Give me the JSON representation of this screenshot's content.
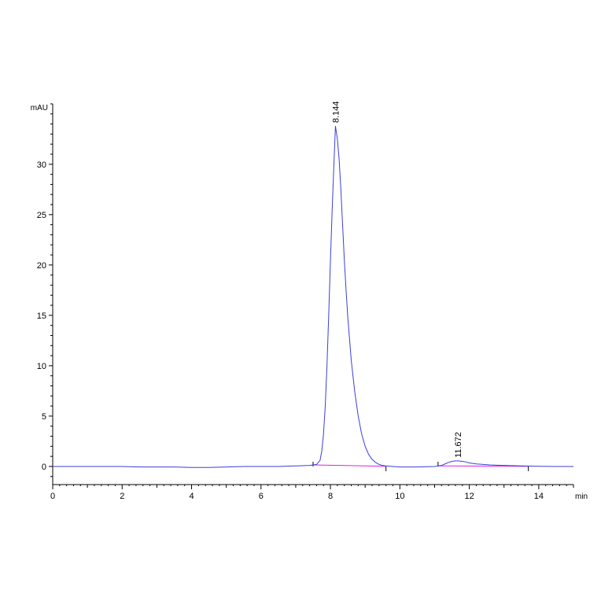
{
  "chart_data": {
    "type": "line",
    "ylabel": "mAU",
    "xlabel": "min",
    "xlim": [
      0,
      15
    ],
    "ylim": [
      -1.8,
      36
    ],
    "x_ticks": [
      0,
      2,
      4,
      6,
      8,
      10,
      12,
      14
    ],
    "y_ticks": [
      0,
      5,
      10,
      15,
      20,
      25,
      30
    ],
    "grid": false,
    "legend": "none",
    "colors": {
      "signal": "#3b3fd8",
      "baseline": "#e020e0",
      "axis": "#000000"
    },
    "series": [
      {
        "x": [
          0,
          1,
          2,
          2.5,
          3,
          3.5,
          4,
          4.5,
          5,
          5.5,
          6,
          6.5,
          7,
          7.4,
          7.6,
          7.7,
          7.75,
          7.8,
          7.85,
          7.9,
          7.95,
          8.0,
          8.05,
          8.1,
          8.144,
          8.2,
          8.25,
          8.3,
          8.35,
          8.4,
          8.45,
          8.5,
          8.6,
          8.7,
          8.8,
          8.9,
          9.0,
          9.1,
          9.2,
          9.3,
          9.4,
          9.5,
          9.6,
          9.8,
          10,
          10.5,
          11,
          11.2,
          11.3,
          11.4,
          11.5,
          11.6,
          11.672,
          11.8,
          11.9,
          12.0,
          12.2,
          12.4,
          12.6,
          12.8,
          13.0,
          13.2,
          13.5,
          14,
          14.5,
          15
        ],
        "y": [
          0.0,
          0.0,
          0.0,
          -0.05,
          -0.05,
          -0.05,
          -0.1,
          -0.1,
          -0.05,
          0.0,
          0.0,
          0.0,
          0.05,
          0.1,
          0.2,
          0.6,
          1.5,
          3.2,
          6.0,
          10.0,
          15.0,
          20.5,
          25.5,
          30.0,
          33.8,
          32.5,
          30.5,
          27.5,
          24.0,
          20.5,
          17.5,
          14.8,
          10.5,
          7.4,
          5.0,
          3.2,
          2.0,
          1.2,
          0.7,
          0.4,
          0.2,
          0.1,
          0.05,
          0.0,
          -0.05,
          -0.05,
          0.0,
          0.1,
          0.25,
          0.4,
          0.5,
          0.55,
          0.55,
          0.5,
          0.45,
          0.35,
          0.25,
          0.2,
          0.15,
          0.12,
          0.1,
          0.08,
          0.05,
          0.02,
          0.0,
          0.0
        ]
      }
    ],
    "baselines": [
      {
        "x": [
          7.5,
          9.6
        ],
        "y": [
          0.15,
          0.02
        ]
      },
      {
        "x": [
          11.1,
          13.7
        ],
        "y": [
          0.05,
          0.02
        ]
      }
    ],
    "integration_marks": [
      7.5,
      9.6,
      11.1,
      13.7
    ],
    "annotations": [
      {
        "text": "8.144",
        "x": 8.144,
        "y": 33.8
      },
      {
        "text": "11.672",
        "x": 11.672,
        "y": 0.55
      }
    ]
  }
}
